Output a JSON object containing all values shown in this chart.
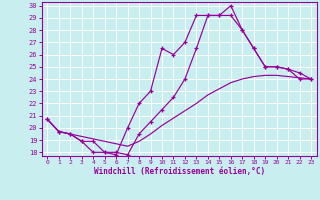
{
  "xlabel": "Windchill (Refroidissement éolien,°C)",
  "xlim": [
    -0.5,
    23.5
  ],
  "ylim": [
    17.7,
    30.3
  ],
  "yticks": [
    18,
    19,
    20,
    21,
    22,
    23,
    24,
    25,
    26,
    27,
    28,
    29,
    30
  ],
  "xticks": [
    0,
    1,
    2,
    3,
    4,
    5,
    6,
    7,
    8,
    9,
    10,
    11,
    12,
    13,
    14,
    15,
    16,
    17,
    18,
    19,
    20,
    21,
    22,
    23
  ],
  "bg_color": "#c8eef0",
  "grid_color": "#ffffff",
  "line_color": "#990099",
  "line1_x": [
    0,
    1,
    2,
    3,
    4,
    5,
    6,
    7,
    8,
    9,
    10,
    11,
    12,
    13,
    14,
    15,
    16,
    17,
    18,
    19,
    20,
    21,
    22,
    23
  ],
  "line1_y": [
    20.7,
    19.7,
    19.5,
    18.9,
    18.0,
    18.0,
    17.8,
    20.0,
    22.0,
    23.0,
    26.5,
    26.0,
    27.0,
    29.2,
    29.2,
    29.2,
    30.0,
    28.0,
    26.5,
    25.0,
    25.0,
    24.8,
    24.0,
    24.0
  ],
  "line2_x": [
    0,
    1,
    2,
    3,
    4,
    5,
    6,
    7,
    8,
    9,
    10,
    11,
    12,
    13,
    14,
    15,
    16,
    17,
    18,
    19,
    20,
    21,
    22,
    23
  ],
  "line2_y": [
    20.7,
    19.7,
    19.5,
    19.3,
    19.1,
    18.9,
    18.7,
    18.5,
    18.9,
    19.5,
    20.2,
    20.8,
    21.4,
    22.0,
    22.7,
    23.2,
    23.7,
    24.0,
    24.2,
    24.3,
    24.3,
    24.2,
    24.1,
    24.0
  ],
  "line3_x": [
    0,
    1,
    2,
    3,
    4,
    5,
    6,
    7,
    8,
    9,
    10,
    11,
    12,
    13,
    14,
    15,
    16,
    17,
    18,
    19,
    20,
    21,
    22,
    23
  ],
  "line3_y": [
    20.7,
    19.7,
    19.5,
    18.9,
    18.9,
    18.0,
    18.0,
    17.8,
    19.5,
    20.5,
    21.5,
    22.5,
    24.0,
    26.5,
    29.2,
    29.2,
    29.2,
    28.0,
    26.5,
    25.0,
    25.0,
    24.8,
    24.5,
    24.0
  ],
  "marker": "+"
}
